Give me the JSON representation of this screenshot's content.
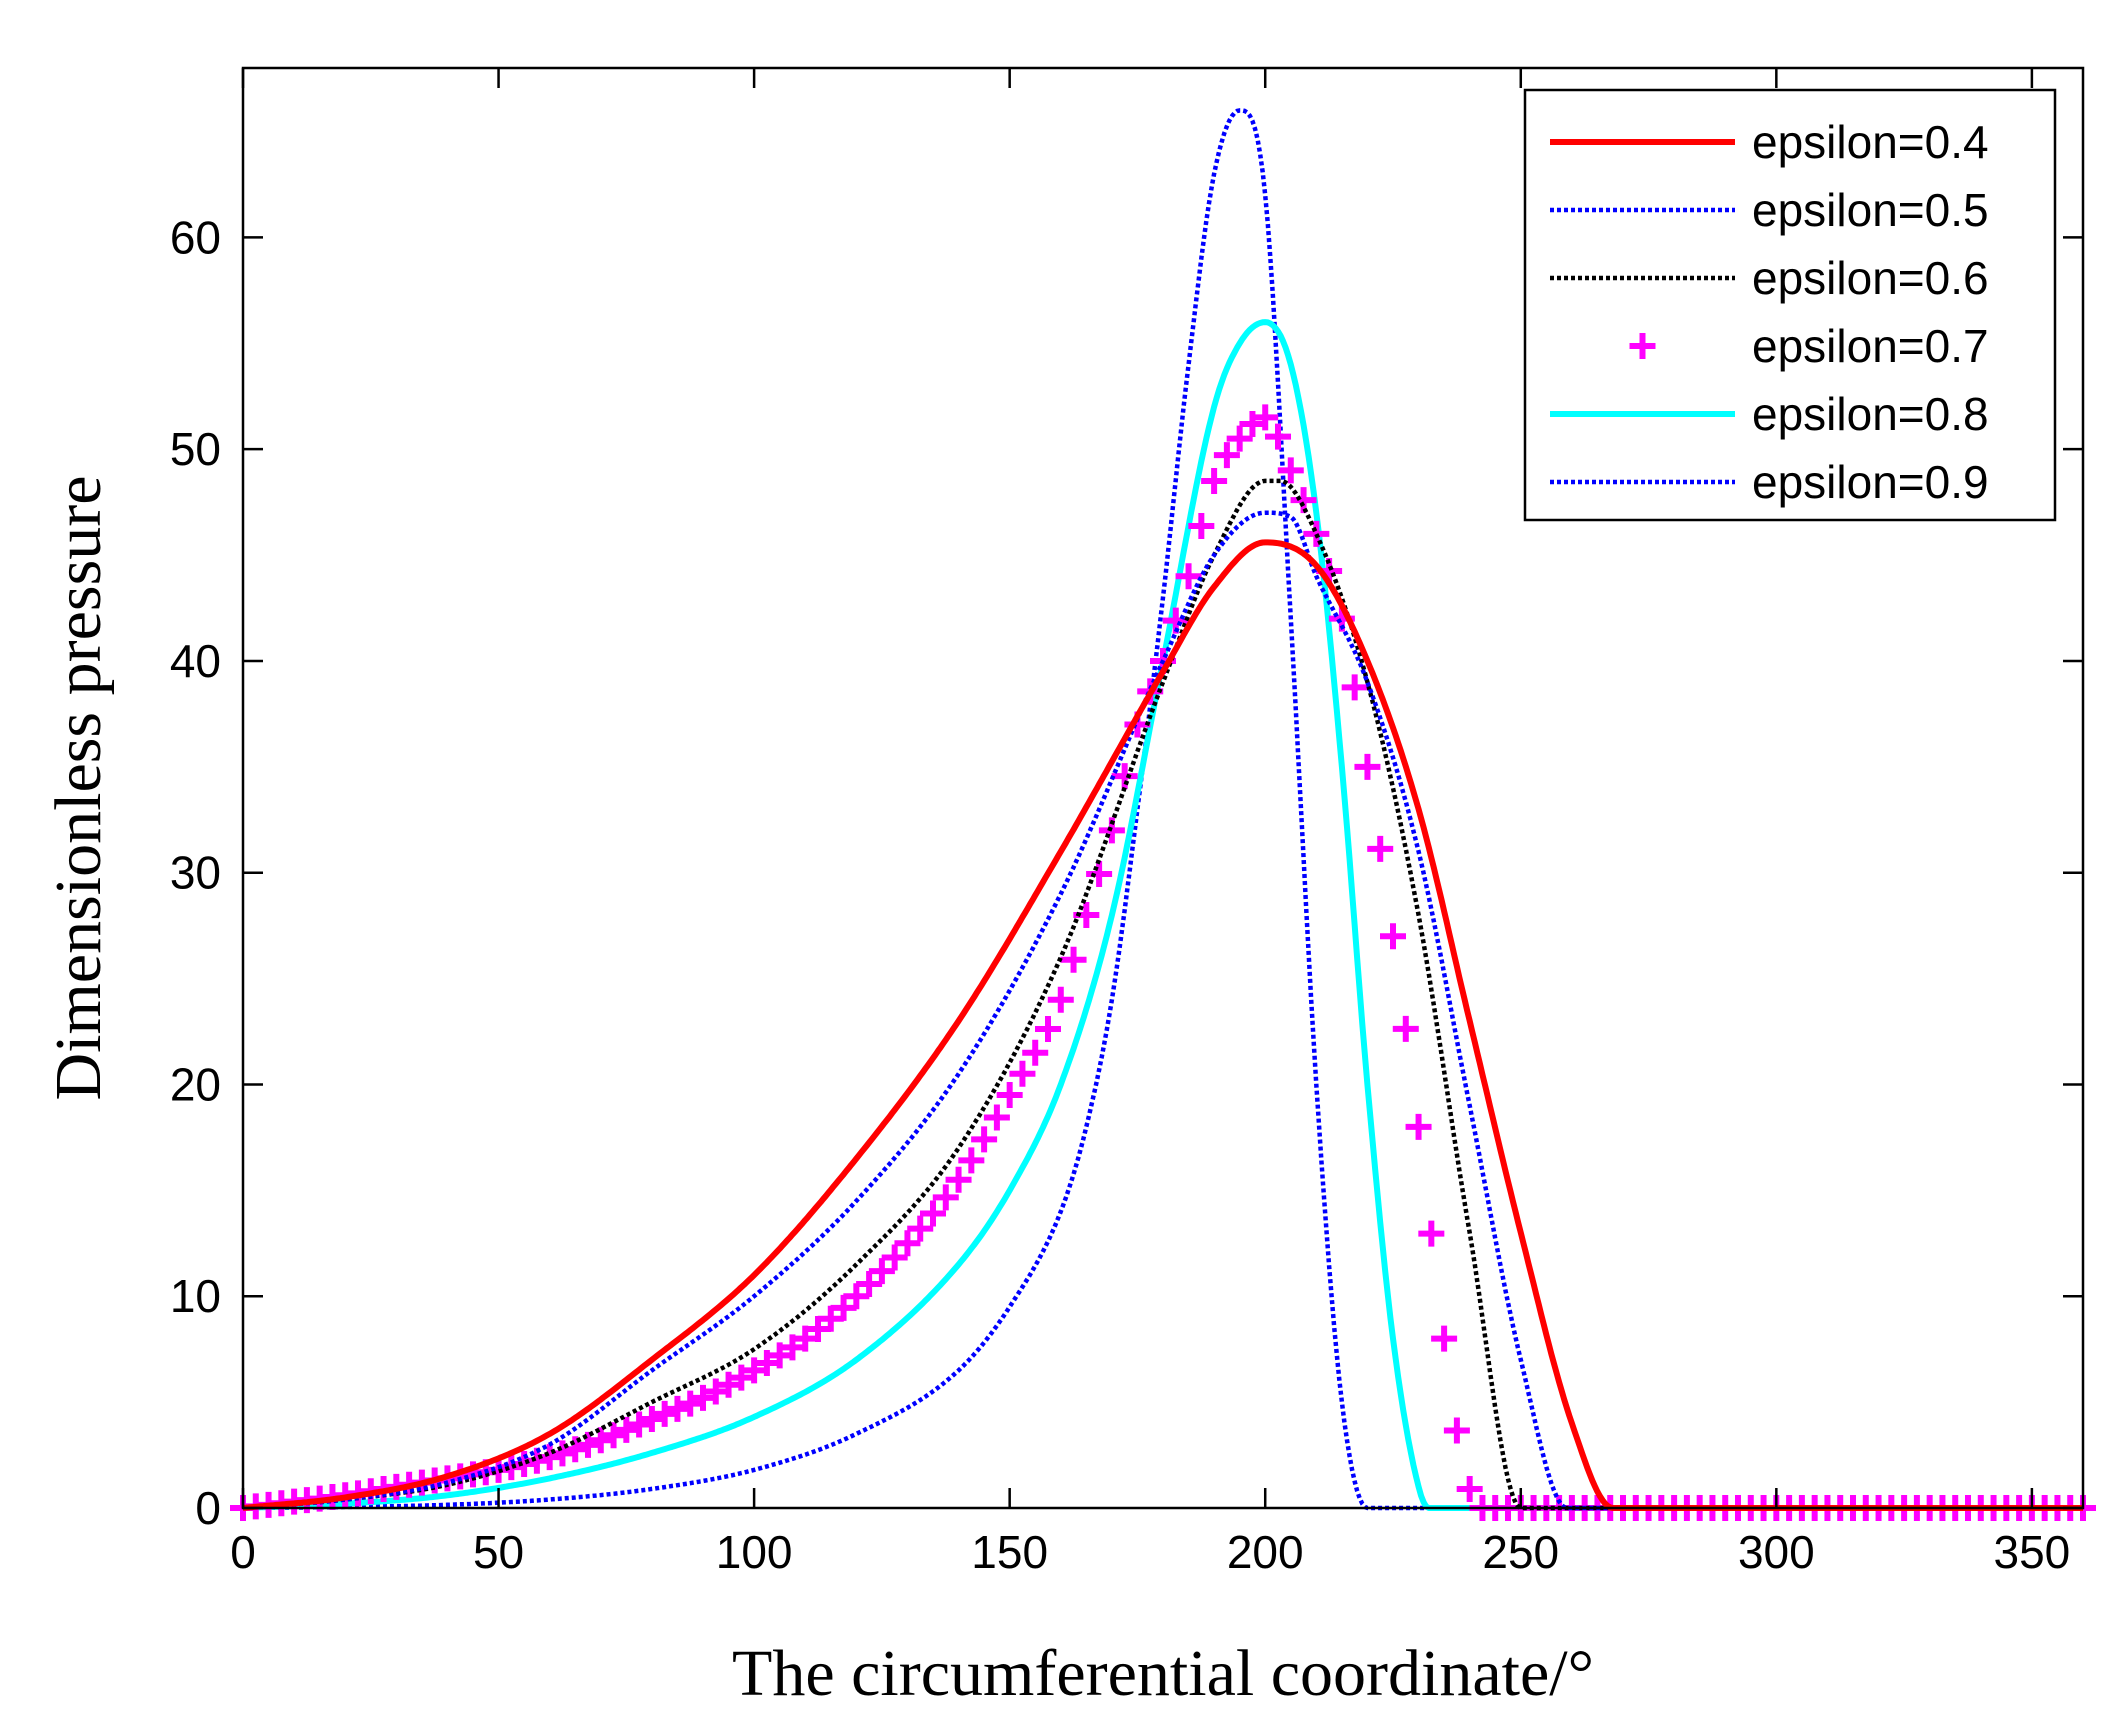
{
  "chart_data": {
    "type": "line",
    "title": "",
    "xlabel": "The circumferential coordinate/°",
    "ylabel": "Dimensionless pressure",
    "xlim": [
      0,
      360
    ],
    "ylim": [
      0,
      68
    ],
    "xticks": [
      0,
      50,
      100,
      150,
      200,
      250,
      300,
      350
    ],
    "yticks": [
      0,
      10,
      20,
      30,
      40,
      50,
      60
    ],
    "grid": false,
    "legend_position": "top-right",
    "series": [
      {
        "name": "epsilon=0.4",
        "color": "#ff0000",
        "style": "solid",
        "x": [
          0,
          20,
          40,
          60,
          80,
          100,
          120,
          140,
          160,
          180,
          190,
          200,
          210,
          220,
          230,
          240,
          250,
          260,
          268,
          280,
          300,
          330,
          360
        ],
        "y": [
          0,
          0.5,
          1.5,
          3.5,
          7,
          11,
          16.5,
          23,
          31,
          39.5,
          43.5,
          45.6,
          44.5,
          40,
          33,
          23,
          13,
          4,
          0,
          0,
          0,
          0,
          0
        ]
      },
      {
        "name": "epsilon=0.5",
        "color": "#0000ff",
        "style": "dotted",
        "x": [
          0,
          20,
          40,
          60,
          80,
          100,
          120,
          140,
          160,
          180,
          190,
          200,
          205,
          210,
          220,
          230,
          240,
          250,
          259,
          280,
          300,
          330,
          360
        ],
        "y": [
          0,
          0.4,
          1.2,
          3,
          6.5,
          10,
          14.5,
          20.5,
          29,
          40,
          45,
          47,
          46.8,
          44,
          39,
          31,
          19,
          7,
          0,
          0,
          0,
          0,
          0
        ]
      },
      {
        "name": "epsilon=0.6",
        "color": "#000000",
        "style": "dotted",
        "x": [
          0,
          20,
          40,
          60,
          80,
          100,
          120,
          140,
          160,
          180,
          190,
          200,
          203,
          210,
          220,
          230,
          240,
          250,
          280,
          300,
          330,
          360
        ],
        "y": [
          0,
          0.4,
          1.1,
          2.6,
          5,
          7.5,
          11.5,
          17,
          26,
          39,
          45,
          48.5,
          48.5,
          46,
          39,
          28,
          13,
          0,
          0,
          0,
          0,
          0
        ]
      },
      {
        "name": "epsilon=0.7",
        "color": "#ff00ff",
        "style": "plus",
        "x": [
          0,
          10,
          20,
          30,
          40,
          50,
          60,
          70,
          80,
          90,
          100,
          110,
          120,
          130,
          140,
          150,
          160,
          165,
          170,
          175,
          180,
          185,
          190,
          195,
          200,
          205,
          210,
          215,
          220,
          225,
          230,
          235,
          238,
          242,
          250,
          270,
          300,
          330,
          360
        ],
        "y": [
          0,
          0.3,
          0.6,
          1,
          1.4,
          1.8,
          2.4,
          3.2,
          4.2,
          5.2,
          6.5,
          8,
          10,
          12.5,
          15.5,
          19.5,
          24,
          28,
          32,
          37,
          40,
          44,
          48.5,
          50.5,
          51.5,
          49,
          46,
          42,
          35,
          27,
          18,
          8,
          3,
          0,
          0,
          0,
          0,
          0,
          0
        ]
      },
      {
        "name": "epsilon=0.8",
        "color": "#00ffff",
        "style": "solid",
        "x": [
          0,
          20,
          40,
          60,
          80,
          100,
          120,
          140,
          150,
          160,
          170,
          180,
          190,
          195,
          200,
          205,
          210,
          215,
          220,
          225,
          230,
          232,
          250,
          280,
          300,
          330,
          360
        ],
        "y": [
          0,
          0.2,
          0.6,
          1.4,
          2.6,
          4.3,
          7,
          11.5,
          15,
          20,
          28,
          40,
          52,
          55,
          56,
          54,
          47,
          35,
          20,
          8,
          1,
          0,
          0,
          0,
          0,
          0,
          0
        ]
      },
      {
        "name": "epsilon=0.9",
        "color": "#0000ff",
        "style": "dotted",
        "x": [
          0,
          20,
          40,
          60,
          80,
          100,
          120,
          140,
          150,
          160,
          165,
          170,
          175,
          180,
          185,
          190,
          195,
          200,
          205,
          210,
          215,
          220,
          230,
          260,
          300,
          330,
          360
        ],
        "y": [
          0,
          0.05,
          0.15,
          0.4,
          0.9,
          1.8,
          3.5,
          6.5,
          9.5,
          14,
          18,
          24,
          33,
          43,
          54,
          63,
          66,
          62,
          42,
          20,
          5,
          0,
          0,
          0,
          0,
          0,
          0
        ]
      }
    ]
  }
}
